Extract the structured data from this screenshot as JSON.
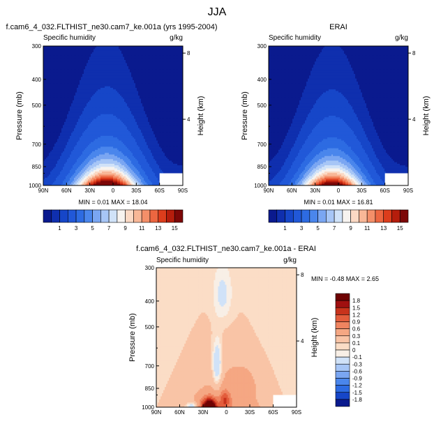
{
  "figure": {
    "title": "JJA"
  },
  "colors": {
    "abs": [
      "#0a1a8e",
      "#0f2fae",
      "#1646c8",
      "#2158d8",
      "#2d6be2",
      "#4a86ec",
      "#7aa6f2",
      "#a7c6f6",
      "#d0e2f8",
      "#f7f3ef",
      "#fbd9c4",
      "#f8b797",
      "#f48f69",
      "#ec6640",
      "#dc3d1c",
      "#b51d0c",
      "#7c0707"
    ],
    "diff": [
      "#0a1a8e",
      "#1646c8",
      "#2d6be2",
      "#4a86ec",
      "#7aa6f2",
      "#a7c6f6",
      "#d0e2f8",
      "#f8efe6",
      "#fbddc6",
      "#f9c4a6",
      "#f5a783",
      "#ef8460",
      "#e35d3c",
      "#c8331c",
      "#a01010",
      "#6e0303"
    ]
  },
  "chart_data": [
    {
      "id": "model",
      "type": "heatmap",
      "title": "f.cam6_4_032.FLTHIST_ne30.cam7_ke.001a (yrs 1995-2004)",
      "left_label": "Specific humidity",
      "right_label": "g/kg",
      "xlabel": "",
      "ylabel": "Pressure (mb)",
      "y2label": "Height (km)",
      "x_ticks": [
        "90N",
        "60N",
        "30N",
        "0",
        "30S",
        "60S",
        "90S"
      ],
      "x_range": [
        90,
        -90
      ],
      "y_ticks": [
        "300",
        "400",
        "500",
        "700",
        "850",
        "1000"
      ],
      "y_tick_values": [
        300,
        400,
        500,
        700,
        850,
        1000
      ],
      "y_range": [
        300,
        1000
      ],
      "y_scale": "log",
      "y2_ticks": [
        "8",
        "4"
      ],
      "min": "0.01",
      "max": "18.04",
      "field": {
        "lat_peak": 8,
        "lat_width": 38,
        "surface_max": 18.04,
        "scale_height_mb": 160
      },
      "missing_region": {
        "lat": [
          -60,
          -90
        ],
        "pressure": [
          900,
          1000
        ]
      }
    },
    {
      "id": "obs",
      "type": "heatmap",
      "title": "ERAI",
      "left_label": "Specific humidity",
      "right_label": "g/kg",
      "xlabel": "",
      "ylabel": "Pressure (mb)",
      "y2label": "Height (km)",
      "x_ticks": [
        "90N",
        "60N",
        "30N",
        "0",
        "30S",
        "60S",
        "90S"
      ],
      "x_range": [
        90,
        -90
      ],
      "y_ticks": [
        "300",
        "400",
        "500",
        "700",
        "850",
        "1000"
      ],
      "y_tick_values": [
        300,
        400,
        500,
        700,
        850,
        1000
      ],
      "y_range": [
        300,
        1000
      ],
      "y_scale": "log",
      "y2_ticks": [
        "8",
        "4"
      ],
      "min": "0.01",
      "max": "16.81",
      "field": {
        "lat_peak": 8,
        "lat_width": 37,
        "surface_max": 16.81,
        "scale_height_mb": 160
      },
      "missing_region": {
        "lat": [
          -60,
          -90
        ],
        "pressure": [
          900,
          1000
        ]
      }
    },
    {
      "id": "diff",
      "type": "heatmap",
      "title": "f.cam6_4_032.FLTHIST_ne30.cam7_ke.001a - ERAI",
      "left_label": "Specific humidity",
      "right_label": "g/kg",
      "xlabel": "",
      "ylabel": "Pressure (mb)",
      "y2label": "Height (km)",
      "x_ticks": [
        "90N",
        "60N",
        "30N",
        "0",
        "30S",
        "60S",
        "90S"
      ],
      "x_range": [
        90,
        -90
      ],
      "y_ticks": [
        "300",
        "400",
        "500",
        "700",
        "850",
        "1000"
      ],
      "y_tick_values": [
        300,
        400,
        500,
        700,
        850,
        1000
      ],
      "y_range": [
        300,
        1000
      ],
      "y_scale": "log",
      "y2_ticks": [
        "8",
        "4"
      ],
      "min": "-0.48",
      "max": "2.65",
      "missing_region": {
        "lat": [
          -60,
          -90
        ],
        "pressure": [
          900,
          1000
        ]
      }
    }
  ],
  "colorbars": {
    "abs": {
      "orientation": "horizontal",
      "labels": [
        "1",
        "3",
        "5",
        "7",
        "9",
        "11",
        "13",
        "15"
      ]
    },
    "diff": {
      "orientation": "vertical",
      "labels": [
        "1.8",
        "1.5",
        "1.2",
        "0.9",
        "0.6",
        "0.3",
        "0.1",
        "0",
        "-0.1",
        "-0.3",
        "-0.6",
        "-0.9",
        "-1.2",
        "-1.5",
        "-1.8"
      ]
    }
  }
}
